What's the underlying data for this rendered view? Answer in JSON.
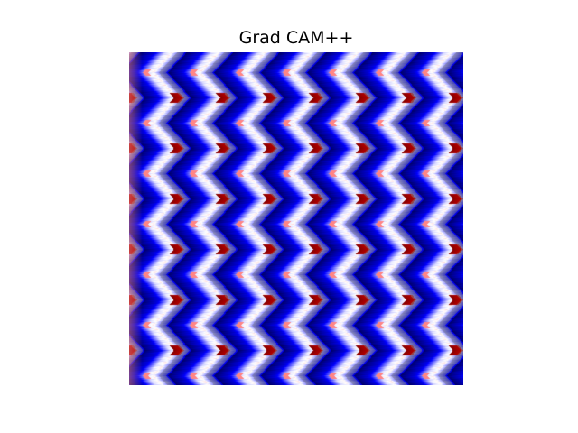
{
  "figure": {
    "title": "Grad CAM++"
  },
  "image": {
    "description_name": "grad-cam-plus-plus-heatmap",
    "colormap": "seismic",
    "colors": {
      "low": "#00004c",
      "mid_low": "#0000ff",
      "center": "#ffffff",
      "mid_high": "#ff0000",
      "high": "#800000",
      "muted_overlay": "#808080"
    }
  }
}
